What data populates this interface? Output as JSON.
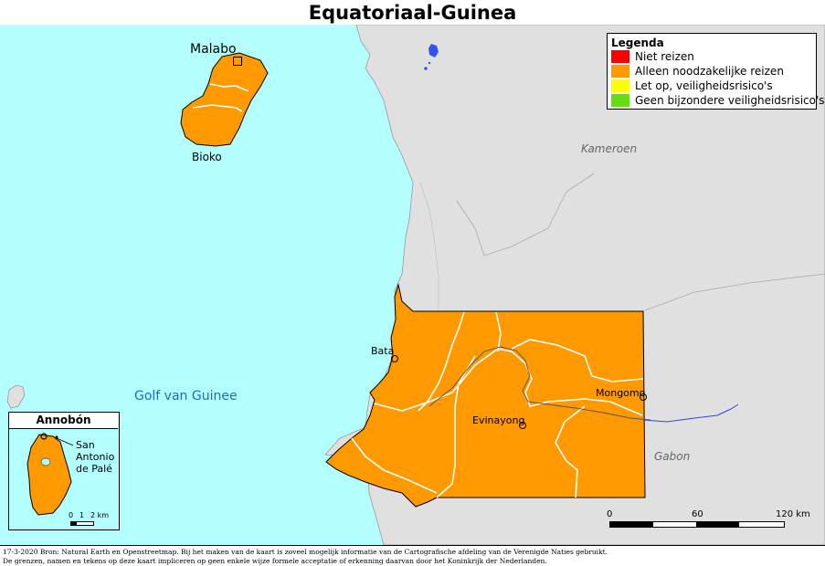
{
  "title": "Equatoriaal-Guinea",
  "legend": {
    "title": "Legenda",
    "items": [
      {
        "label": "Niet reizen",
        "color": "#ff0000"
      },
      {
        "label": "Alleen noodzakelijke reizen",
        "color": "#ff9900"
      },
      {
        "label": "Let op, veiligheidsrisico's",
        "color": "#ffff00"
      },
      {
        "label": "Geen bijzondere veiligheidsrisico's",
        "color": "#66dd11"
      }
    ]
  },
  "colors": {
    "sea": "#b3ffff",
    "land_other": "#e0e0e0",
    "country": "#ff9900",
    "river": "#3344ee"
  },
  "places": {
    "malabo": "Malabo",
    "bioko": "Bioko",
    "bata": "Bata",
    "evinayong": "Evinayong",
    "mongomo": "Mongomo",
    "kameroen": "Kameroen",
    "gabon": "Gabon",
    "golf": "Golf van Guinee"
  },
  "inset": {
    "title": "Annobón",
    "place_line1": "San",
    "place_line2": "Antonio",
    "place_line3": "de Palé",
    "scale": {
      "t0": "0",
      "t1": "1",
      "t2": "2 km"
    }
  },
  "scale": {
    "t0": "0",
    "t1": "60",
    "t2": "120 km"
  },
  "footer": {
    "line1": "17-3-2020 Bron: Natural Earth en Openstreetmap. Bij het maken van de kaart is zoveel mogelijk informatie van de Cartografische afdeling van de Verenigde Naties gebruikt.",
    "line2": "De grenzen, namen en tekens op deze kaart impliceren op geen enkele wijze formele acceptatie of erkenning daarvan door het Koninkrijk der Nederlanden."
  }
}
